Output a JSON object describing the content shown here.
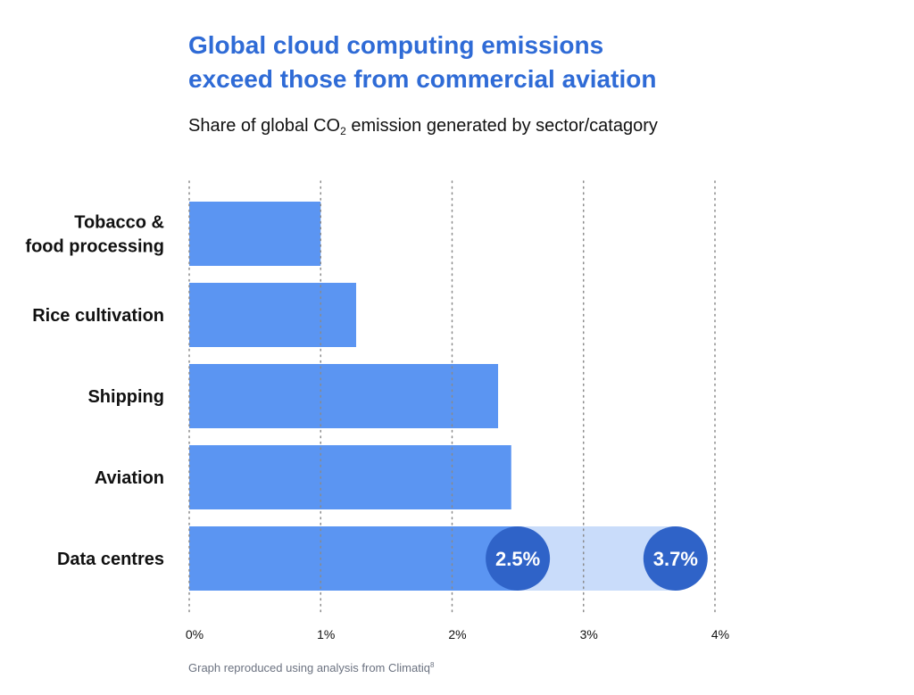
{
  "title_line1": "Global cloud computing emissions",
  "title_line2": "exceed those from commercial aviation",
  "subtitle_prefix": "Share of global CO",
  "subtitle_sub": "2",
  "subtitle_suffix": " emission generated by sector/catagory",
  "footnote_text": "Graph reproduced using analysis from Climatiq",
  "footnote_sup": "8",
  "colors": {
    "title": "#2f6bd6",
    "bar": "#5b95f2",
    "range_band": "#c9dcfa",
    "marker": "#2f63c8",
    "grid": "#8a8a8a"
  },
  "chart_data": {
    "type": "bar",
    "orientation": "horizontal",
    "categories": [
      [
        "Tobacco &",
        "food processing"
      ],
      [
        "Rice cultivation"
      ],
      [
        "Shipping"
      ],
      [
        "Aviation"
      ],
      [
        "Data centres"
      ]
    ],
    "values": [
      1.0,
      1.27,
      2.35,
      2.45,
      2.5
    ],
    "range_high": [
      null,
      null,
      null,
      null,
      3.7
    ],
    "annotations": [
      {
        "category_index": 4,
        "value": 2.5,
        "label": "2.5%"
      },
      {
        "category_index": 4,
        "value": 3.7,
        "label": "3.7%"
      }
    ],
    "xlim": [
      0,
      4
    ],
    "xticks": [
      0,
      1,
      2,
      3,
      4
    ],
    "xtick_labels": [
      "0%",
      "1%",
      "2%",
      "3%",
      "4%"
    ],
    "grid": true,
    "xlabel": "",
    "ylabel": ""
  }
}
